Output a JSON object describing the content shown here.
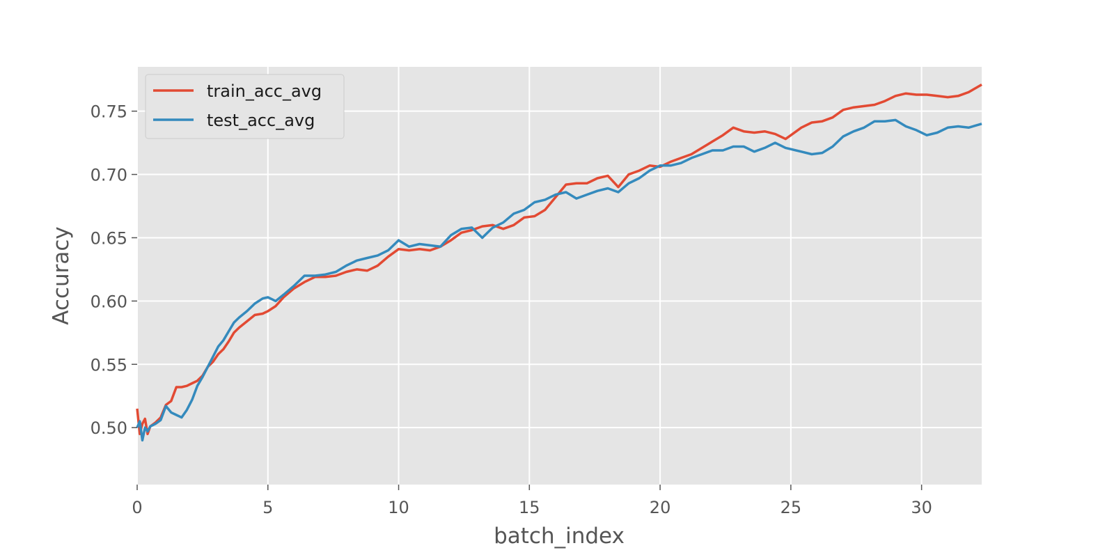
{
  "chart_data": {
    "type": "line",
    "title": "",
    "xlabel": "batch_index",
    "ylabel": "Accuracy",
    "xlim": [
      0,
      32.3
    ],
    "ylim": [
      0.455,
      0.785
    ],
    "xticks": [
      0,
      5,
      10,
      15,
      20,
      25,
      30
    ],
    "yticks": [
      0.5,
      0.55,
      0.6,
      0.65,
      0.7,
      0.75
    ],
    "ytick_format": 2,
    "grid": true,
    "legend_position": "top-left",
    "background": "#E5E5E5",
    "series": [
      {
        "name": "train_acc_avg",
        "color": "#E24A33",
        "x": [
          0,
          0.1,
          0.2,
          0.3,
          0.4,
          0.5,
          0.7,
          0.9,
          1.1,
          1.3,
          1.5,
          1.7,
          1.9,
          2.1,
          2.3,
          2.5,
          2.7,
          2.9,
          3.1,
          3.3,
          3.5,
          3.7,
          3.9,
          4.2,
          4.5,
          4.8,
          5.0,
          5.3,
          5.6,
          6.0,
          6.4,
          6.8,
          7.2,
          7.6,
          8.0,
          8.4,
          8.8,
          9.2,
          9.6,
          10.0,
          10.4,
          10.8,
          11.2,
          11.6,
          12.0,
          12.4,
          12.8,
          13.2,
          13.6,
          14.0,
          14.4,
          14.8,
          15.2,
          15.6,
          16.0,
          16.4,
          16.8,
          17.2,
          17.6,
          18.0,
          18.4,
          18.8,
          19.2,
          19.6,
          20.0,
          20.4,
          20.8,
          21.2,
          21.6,
          22.0,
          22.4,
          22.8,
          23.2,
          23.6,
          24.0,
          24.4,
          24.8,
          25.0,
          25.4,
          25.8,
          26.2,
          26.6,
          27.0,
          27.4,
          27.8,
          28.2,
          28.6,
          29.0,
          29.4,
          29.8,
          30.2,
          30.6,
          31.0,
          31.4,
          31.8,
          32.3
        ],
        "y": [
          0.515,
          0.495,
          0.503,
          0.507,
          0.495,
          0.501,
          0.504,
          0.508,
          0.518,
          0.521,
          0.532,
          0.532,
          0.533,
          0.535,
          0.537,
          0.541,
          0.548,
          0.552,
          0.558,
          0.562,
          0.568,
          0.575,
          0.579,
          0.584,
          0.589,
          0.59,
          0.592,
          0.596,
          0.603,
          0.61,
          0.615,
          0.619,
          0.619,
          0.62,
          0.623,
          0.625,
          0.624,
          0.628,
          0.635,
          0.641,
          0.64,
          0.641,
          0.64,
          0.643,
          0.648,
          0.654,
          0.656,
          0.659,
          0.66,
          0.657,
          0.66,
          0.666,
          0.667,
          0.672,
          0.682,
          0.692,
          0.693,
          0.693,
          0.697,
          0.699,
          0.69,
          0.7,
          0.703,
          0.707,
          0.706,
          0.71,
          0.713,
          0.716,
          0.721,
          0.726,
          0.731,
          0.737,
          0.734,
          0.733,
          0.734,
          0.732,
          0.728,
          0.731,
          0.737,
          0.741,
          0.742,
          0.745,
          0.751,
          0.753,
          0.754,
          0.755,
          0.758,
          0.762,
          0.764,
          0.763,
          0.763,
          0.762,
          0.761,
          0.762,
          0.765,
          0.771
        ]
      },
      {
        "name": "test_acc_avg",
        "color": "#348ABD",
        "x": [
          0,
          0.1,
          0.2,
          0.3,
          0.4,
          0.5,
          0.7,
          0.9,
          1.1,
          1.3,
          1.5,
          1.7,
          1.9,
          2.1,
          2.3,
          2.5,
          2.7,
          2.9,
          3.1,
          3.3,
          3.5,
          3.7,
          3.9,
          4.2,
          4.5,
          4.8,
          5.0,
          5.3,
          5.6,
          6.0,
          6.4,
          6.8,
          7.2,
          7.6,
          8.0,
          8.4,
          8.8,
          9.2,
          9.6,
          10.0,
          10.4,
          10.8,
          11.2,
          11.6,
          12.0,
          12.4,
          12.8,
          13.2,
          13.6,
          14.0,
          14.4,
          14.8,
          15.2,
          15.6,
          16.0,
          16.4,
          16.8,
          17.2,
          17.6,
          18.0,
          18.4,
          18.8,
          19.2,
          19.6,
          20.0,
          20.4,
          20.8,
          21.2,
          21.6,
          22.0,
          22.4,
          22.8,
          23.2,
          23.6,
          24.0,
          24.4,
          24.8,
          25.0,
          25.4,
          25.8,
          26.2,
          26.6,
          27.0,
          27.4,
          27.8,
          28.2,
          28.6,
          29.0,
          29.4,
          29.8,
          30.2,
          30.6,
          31.0,
          31.4,
          31.8,
          32.3
        ],
        "y": [
          0.5,
          0.505,
          0.49,
          0.5,
          0.497,
          0.501,
          0.503,
          0.506,
          0.517,
          0.512,
          0.51,
          0.508,
          0.514,
          0.522,
          0.533,
          0.54,
          0.548,
          0.556,
          0.564,
          0.569,
          0.576,
          0.583,
          0.587,
          0.592,
          0.598,
          0.602,
          0.603,
          0.6,
          0.605,
          0.612,
          0.62,
          0.62,
          0.621,
          0.623,
          0.628,
          0.632,
          0.634,
          0.636,
          0.64,
          0.648,
          0.643,
          0.645,
          0.644,
          0.643,
          0.652,
          0.657,
          0.658,
          0.65,
          0.658,
          0.662,
          0.669,
          0.672,
          0.678,
          0.68,
          0.684,
          0.686,
          0.681,
          0.684,
          0.687,
          0.689,
          0.686,
          0.693,
          0.697,
          0.703,
          0.707,
          0.707,
          0.709,
          0.713,
          0.716,
          0.719,
          0.719,
          0.722,
          0.722,
          0.718,
          0.721,
          0.725,
          0.721,
          0.72,
          0.718,
          0.716,
          0.717,
          0.722,
          0.73,
          0.734,
          0.737,
          0.742,
          0.742,
          0.743,
          0.738,
          0.735,
          0.731,
          0.733,
          0.737,
          0.738,
          0.737,
          0.74
        ]
      }
    ]
  }
}
